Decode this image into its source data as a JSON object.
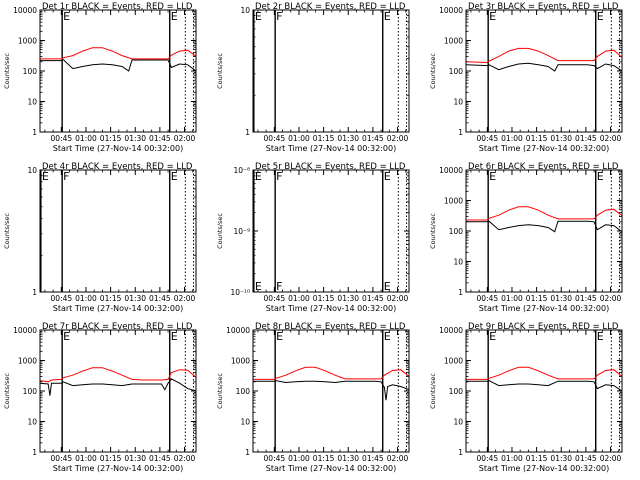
{
  "figure": {
    "x_tick_labels": [
      "00:45",
      "01:00",
      "01:15",
      "01:30",
      "01:45",
      "02:00"
    ],
    "x_label": "Start Time (27-Nov-14 00:32:00)",
    "y_label": "Counts/sec",
    "event_colors": {
      "events": "#000000",
      "lld": "#ff0000"
    }
  },
  "chart_data": [
    {
      "type": "line",
      "title": "Det 1r BLACK = Events, RED = LLD",
      "xlabel": "Start Time (27-Nov-14 00:32:00)",
      "ylabel": "Counts/sec",
      "x_unit": "minutes after 00:32:00",
      "xlim": [
        0,
        95
      ],
      "yscale": "log",
      "ylim": [
        1,
        10000
      ],
      "y_tick_labels": [
        "1",
        "10",
        "100",
        "1000",
        "10000"
      ],
      "markers": [
        {
          "x": 13.5,
          "label": "E",
          "style": "solid"
        },
        {
          "x": 79,
          "label": "E",
          "style": "solid"
        },
        {
          "x": 88.5,
          "label": "",
          "style": "dotted"
        },
        {
          "x": 93.5,
          "label": "",
          "style": "dotted"
        }
      ],
      "series": [
        {
          "name": "Events",
          "color": "#000000",
          "x": [
            0,
            13,
            14,
            20,
            26,
            32,
            38,
            44,
            50,
            54,
            56,
            62,
            68,
            74,
            78,
            80,
            85,
            90,
            95
          ],
          "y": [
            220,
            220,
            240,
            120,
            140,
            160,
            170,
            160,
            140,
            100,
            230,
            230,
            230,
            230,
            230,
            130,
            170,
            160,
            100
          ]
        },
        {
          "name": "LLD",
          "color": "#ff0000",
          "x": [
            0,
            13,
            14,
            20,
            26,
            32,
            38,
            44,
            50,
            56,
            62,
            68,
            74,
            78,
            80,
            85,
            90,
            95
          ],
          "y": [
            250,
            250,
            270,
            320,
            450,
            580,
            580,
            450,
            320,
            250,
            250,
            250,
            250,
            250,
            330,
            450,
            480,
            300
          ]
        }
      ]
    },
    {
      "type": "line",
      "title": "Det 2r BLACK = Events, RED = LLD",
      "xlabel": "Start Time (27-Nov-14 00:32:00)",
      "ylabel": "Counts/sec",
      "x_unit": "minutes after 00:32:00",
      "xlim": [
        0,
        95
      ],
      "yscale": "log",
      "ylim": [
        1,
        10
      ],
      "y_tick_labels": [
        "1",
        "10"
      ],
      "markers": [
        {
          "x": 0.5,
          "label": "E",
          "style": "solid"
        },
        {
          "x": 13.5,
          "label": "F",
          "style": "solid"
        },
        {
          "x": 79,
          "label": "E",
          "style": "solid"
        },
        {
          "x": 88.5,
          "label": "",
          "style": "dotted"
        },
        {
          "x": 93.5,
          "label": "",
          "style": "dotted"
        }
      ],
      "series": []
    },
    {
      "type": "line",
      "title": "Det 3r BLACK = Events, RED = LLD",
      "xlabel": "Start Time (27-Nov-14 00:32:00)",
      "ylabel": "Counts/sec",
      "x_unit": "minutes after 00:32:00",
      "xlim": [
        0,
        95
      ],
      "yscale": "log",
      "ylim": [
        1,
        10000
      ],
      "y_tick_labels": [
        "1",
        "10",
        "100",
        "1000",
        "10000"
      ],
      "markers": [
        {
          "x": 13.5,
          "label": "E",
          "style": "solid"
        },
        {
          "x": 79,
          "label": "E",
          "style": "solid"
        },
        {
          "x": 88.5,
          "label": "",
          "style": "dotted"
        },
        {
          "x": 93.5,
          "label": "",
          "style": "dotted"
        }
      ],
      "series": [
        {
          "name": "Events",
          "color": "#000000",
          "x": [
            0,
            13,
            14,
            20,
            26,
            32,
            38,
            44,
            50,
            54,
            56,
            62,
            68,
            74,
            78,
            80,
            85,
            90,
            95
          ],
          "y": [
            160,
            150,
            160,
            110,
            140,
            170,
            180,
            160,
            140,
            100,
            160,
            160,
            160,
            160,
            150,
            120,
            170,
            150,
            100
          ]
        },
        {
          "name": "LLD",
          "color": "#ff0000",
          "x": [
            0,
            13,
            14,
            20,
            26,
            32,
            38,
            44,
            50,
            56,
            62,
            68,
            74,
            78,
            80,
            85,
            90,
            95
          ],
          "y": [
            200,
            190,
            210,
            300,
            450,
            550,
            550,
            450,
            320,
            220,
            220,
            220,
            220,
            220,
            300,
            450,
            480,
            280
          ]
        }
      ]
    },
    {
      "type": "line",
      "title": "Det 4r BLACK = Events, RED = LLD",
      "xlabel": "Start Time (27-Nov-14 00:32:00)",
      "ylabel": "Counts/sec",
      "x_unit": "minutes after 00:32:00",
      "xlim": [
        0,
        95
      ],
      "yscale": "log",
      "ylim": [
        1,
        10
      ],
      "y_tick_labels": [
        "1",
        "10"
      ],
      "markers": [
        {
          "x": 0.5,
          "label": "E",
          "style": "solid"
        },
        {
          "x": 13.5,
          "label": "F",
          "style": "solid"
        },
        {
          "x": 79,
          "label": "E",
          "style": "solid"
        },
        {
          "x": 88.5,
          "label": "",
          "style": "dotted"
        },
        {
          "x": 93.5,
          "label": "",
          "style": "dotted"
        }
      ],
      "series": []
    },
    {
      "type": "line",
      "title": "Det 5r BLACK = Events, RED = LLD",
      "xlabel": "Start Time (27-Nov-14 00:32:00)",
      "ylabel": "Counts/sec",
      "x_unit": "minutes after 00:32:00",
      "xlim": [
        0,
        95
      ],
      "yscale": "log",
      "ylim": [
        1e-10,
        1e-08
      ],
      "y_tick_labels": [
        "10⁻¹⁰",
        "10⁻⁹",
        "10⁻⁸"
      ],
      "markers": [
        {
          "x": 0.5,
          "label": "E",
          "style": "solid"
        },
        {
          "x": 13.5,
          "label": "F",
          "style": "solid"
        },
        {
          "x": 79,
          "label": "E",
          "style": "solid"
        },
        {
          "x": 88.5,
          "label": "",
          "style": "dotted"
        },
        {
          "x": 93.5,
          "label": "",
          "style": "dotted"
        }
      ],
      "series": []
    },
    {
      "type": "line",
      "title": "Det 6r BLACK = Events, RED = LLD",
      "xlabel": "Start Time (27-Nov-14 00:32:00)",
      "ylabel": "Counts/sec",
      "x_unit": "minutes after 00:32:00",
      "xlim": [
        0,
        95
      ],
      "yscale": "log",
      "ylim": [
        1,
        10000
      ],
      "y_tick_labels": [
        "1",
        "10",
        "100",
        "1000",
        "10000"
      ],
      "markers": [
        {
          "x": 13.5,
          "label": "E",
          "style": "solid"
        },
        {
          "x": 79,
          "label": "E",
          "style": "solid"
        },
        {
          "x": 88.5,
          "label": "",
          "style": "dotted"
        },
        {
          "x": 93.5,
          "label": "",
          "style": "dotted"
        }
      ],
      "series": [
        {
          "name": "Events",
          "color": "#000000",
          "x": [
            0,
            13,
            14,
            20,
            26,
            32,
            38,
            44,
            50,
            54,
            56,
            62,
            68,
            74,
            78,
            80,
            85,
            90,
            95
          ],
          "y": [
            200,
            200,
            210,
            110,
            130,
            150,
            160,
            150,
            130,
            95,
            210,
            210,
            210,
            210,
            200,
            110,
            160,
            150,
            95
          ]
        },
        {
          "name": "LLD",
          "color": "#ff0000",
          "x": [
            0,
            13,
            14,
            20,
            26,
            32,
            38,
            44,
            50,
            56,
            62,
            68,
            74,
            78,
            80,
            85,
            90,
            95
          ],
          "y": [
            230,
            230,
            260,
            330,
            480,
            620,
            620,
            480,
            330,
            250,
            250,
            250,
            250,
            250,
            330,
            480,
            520,
            320
          ]
        }
      ]
    },
    {
      "type": "line",
      "title": "Det 7r BLACK = Events, RED = LLD",
      "xlabel": "Start Time (27-Nov-14 00:32:00)",
      "ylabel": "Counts/sec",
      "x_unit": "minutes after 00:32:00",
      "xlim": [
        0,
        95
      ],
      "yscale": "log",
      "ylim": [
        1,
        10000
      ],
      "y_tick_labels": [
        "1",
        "10",
        "100",
        "1000",
        "10000"
      ],
      "markers": [
        {
          "x": 13.5,
          "label": "E",
          "style": "solid"
        },
        {
          "x": 79,
          "label": "E",
          "style": "solid"
        },
        {
          "x": 88.5,
          "label": "",
          "style": "dotted"
        },
        {
          "x": 93.5,
          "label": "",
          "style": "dotted"
        }
      ],
      "series": [
        {
          "name": "Events",
          "color": "#000000",
          "x": [
            0,
            5,
            6,
            7,
            13,
            14,
            20,
            26,
            32,
            38,
            44,
            50,
            56,
            62,
            68,
            74,
            76,
            78,
            80,
            85,
            90,
            95
          ],
          "y": [
            180,
            170,
            70,
            180,
            180,
            200,
            150,
            160,
            170,
            170,
            160,
            150,
            170,
            170,
            170,
            170,
            110,
            180,
            250,
            180,
            120,
            100
          ]
        },
        {
          "name": "LLD",
          "color": "#ff0000",
          "x": [
            0,
            5,
            7,
            13,
            14,
            20,
            26,
            32,
            38,
            44,
            50,
            56,
            62,
            68,
            74,
            78,
            80,
            85,
            90,
            95
          ],
          "y": [
            220,
            200,
            230,
            240,
            270,
            330,
            450,
            580,
            580,
            450,
            330,
            240,
            230,
            230,
            230,
            240,
            400,
            500,
            480,
            280
          ]
        }
      ]
    },
    {
      "type": "line",
      "title": "Det 8r BLACK = Events, RED = LLD",
      "xlabel": "Start Time (27-Nov-14 00:32:00)",
      "ylabel": "Counts/sec",
      "x_unit": "minutes after 00:32:00",
      "xlim": [
        0,
        95
      ],
      "yscale": "log",
      "ylim": [
        1,
        10000
      ],
      "y_tick_labels": [
        "1",
        "10",
        "100",
        "1000",
        "10000"
      ],
      "markers": [
        {
          "x": 13.5,
          "label": "E",
          "style": "solid"
        },
        {
          "x": 79,
          "label": "E",
          "style": "solid"
        },
        {
          "x": 88.5,
          "label": "",
          "style": "dotted"
        },
        {
          "x": 93.5,
          "label": "",
          "style": "dotted"
        }
      ],
      "series": [
        {
          "name": "Events",
          "color": "#000000",
          "x": [
            0,
            13,
            14,
            20,
            26,
            32,
            38,
            44,
            50,
            56,
            62,
            68,
            74,
            78,
            80,
            81,
            82,
            85,
            90,
            95
          ],
          "y": [
            210,
            210,
            220,
            190,
            200,
            210,
            210,
            200,
            190,
            210,
            210,
            210,
            210,
            200,
            130,
            50,
            140,
            160,
            140,
            110
          ]
        },
        {
          "name": "LLD",
          "color": "#ff0000",
          "x": [
            0,
            13,
            14,
            20,
            26,
            32,
            38,
            44,
            50,
            56,
            62,
            68,
            74,
            78,
            80,
            85,
            90,
            95
          ],
          "y": [
            240,
            240,
            260,
            330,
            460,
            600,
            600,
            460,
            330,
            250,
            250,
            250,
            250,
            250,
            330,
            470,
            500,
            300
          ]
        }
      ]
    },
    {
      "type": "line",
      "title": "Det 9r BLACK = Events, RED = LLD",
      "xlabel": "Start Time (27-Nov-14 00:32:00)",
      "ylabel": "Counts/sec",
      "x_unit": "minutes after 00:32:00",
      "xlim": [
        0,
        95
      ],
      "yscale": "log",
      "ylim": [
        1,
        10000
      ],
      "y_tick_labels": [
        "1",
        "10",
        "100",
        "1000",
        "10000"
      ],
      "markers": [
        {
          "x": 13.5,
          "label": "E",
          "style": "solid"
        },
        {
          "x": 79,
          "label": "E",
          "style": "solid"
        },
        {
          "x": 88.5,
          "label": "",
          "style": "dotted"
        },
        {
          "x": 93.5,
          "label": "",
          "style": "dotted"
        }
      ],
      "series": [
        {
          "name": "Events",
          "color": "#000000",
          "x": [
            0,
            13,
            14,
            20,
            26,
            32,
            38,
            44,
            50,
            56,
            62,
            68,
            74,
            78,
            80,
            85,
            90,
            95
          ],
          "y": [
            210,
            210,
            220,
            150,
            160,
            170,
            170,
            160,
            150,
            210,
            210,
            210,
            210,
            200,
            120,
            160,
            150,
            100
          ]
        },
        {
          "name": "LLD",
          "color": "#ff0000",
          "x": [
            0,
            13,
            14,
            20,
            26,
            32,
            38,
            44,
            50,
            56,
            62,
            68,
            74,
            78,
            80,
            85,
            90,
            95
          ],
          "y": [
            240,
            240,
            260,
            330,
            460,
            600,
            600,
            460,
            330,
            250,
            250,
            250,
            250,
            250,
            330,
            470,
            500,
            300
          ]
        }
      ]
    }
  ]
}
